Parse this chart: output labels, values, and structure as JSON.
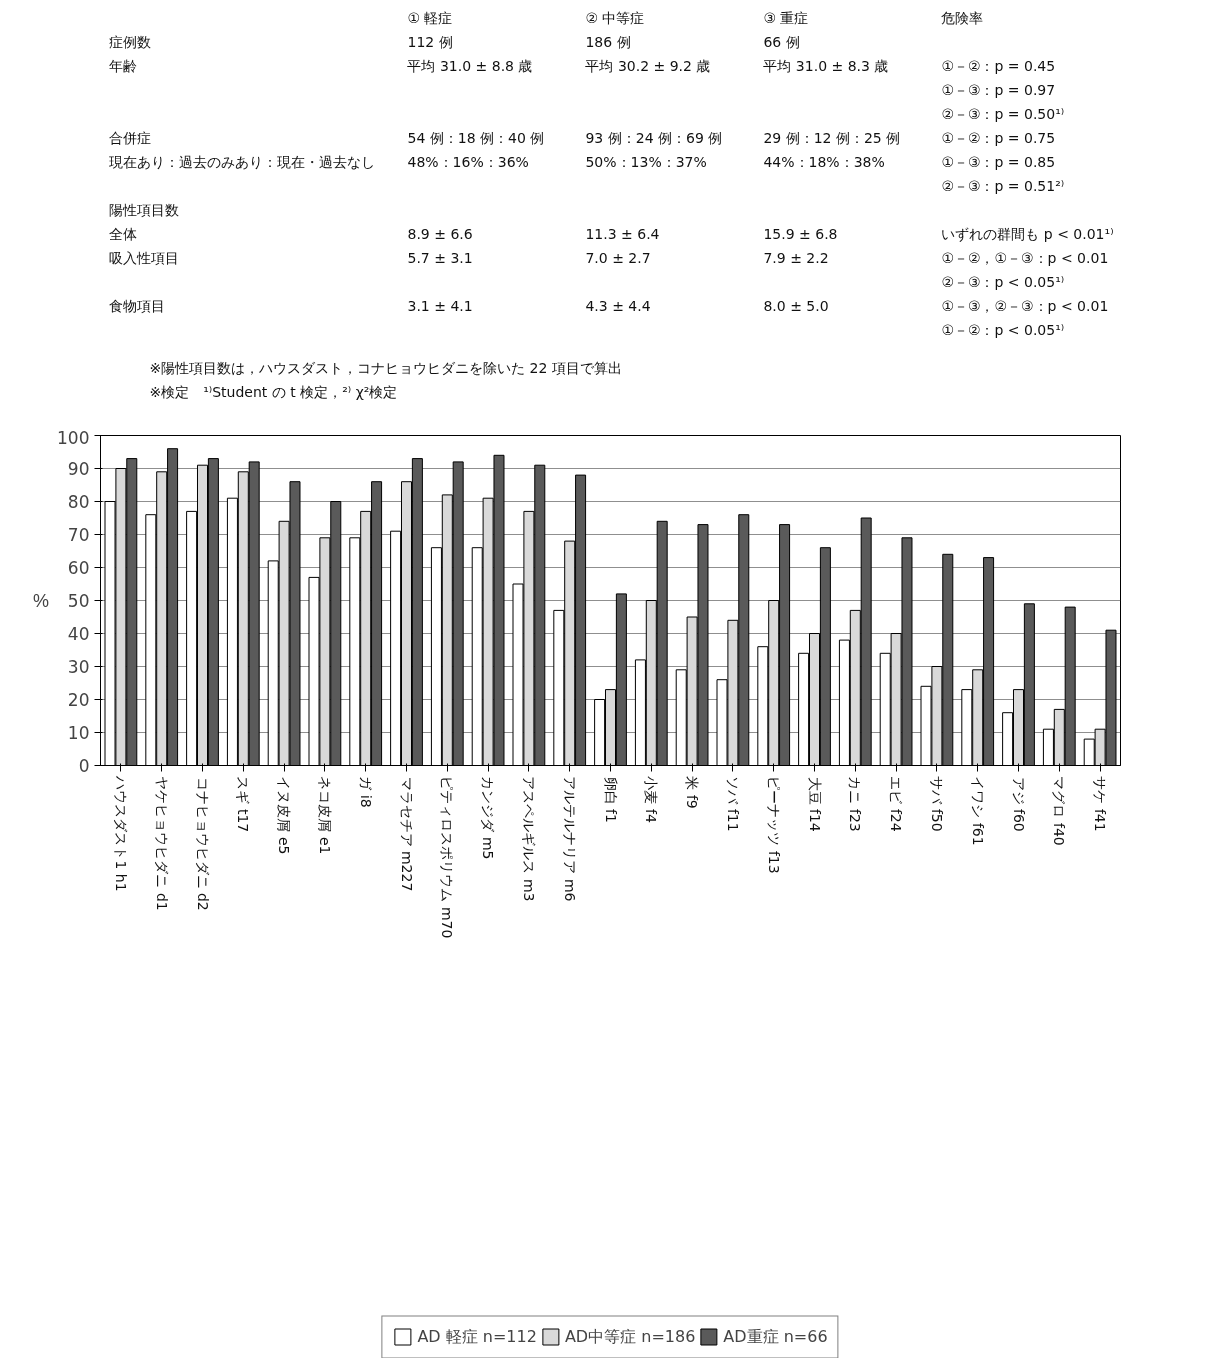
{
  "chart_data": [
    {
      "type": "other",
      "annotations": [
        "① 軽症",
        "② 中等症",
        "③ 重症",
        "危険率",
        "症例数",
        "112 例",
        "186 例",
        "66 例",
        "年齢",
        "平均 31.0 ± 8.8 歳",
        "平均 30.2 ± 9.2 歳",
        "平均 31.0 ± 8.3 歳",
        "①－②：p = 0.45",
        "①－③：p = 0.97",
        "②－③：p = 0.50¹⁾",
        "合併症",
        "54 例：18 例：40 例",
        "93 例：24 例：69 例",
        "29 例：12 例：25 例",
        "①－②：p = 0.75",
        "現在あり：過去のみあり：現在・過去なし",
        "48%：16%：36%",
        "50%：13%：37%",
        "44%：18%：38%",
        "①－③：p = 0.85",
        "②－③：p = 0.51²⁾",
        "陽性項目数",
        "全体",
        "8.9 ± 6.6",
        "11.3 ± 6.4",
        "15.9 ± 6.8",
        "いずれの群間も p < 0.01¹⁾",
        "吸入性項目",
        "5.7 ± 3.1",
        "7.0 ± 2.7",
        "7.9 ± 2.2",
        "①－②，①－③：p < 0.01",
        "②－③：p < 0.05¹⁾",
        "食物項目",
        "3.1 ± 4.1",
        "4.3 ± 4.4",
        "8.0 ± 5.0",
        "①－③，②－③：p < 0.01",
        "①－②：p < 0.05¹⁾",
        "※陽性項目数は，ハウスダスト，コナヒョウヒダニを除いた 22 項目で算出",
        "※検定　¹⁾Student の t 検定，²⁾ χ²検定"
      ]
    },
    {
      "type": "bar",
      "ylabel": "%",
      "categories": [
        "ハウスダスト1 h1",
        "ヤケヒョウヒダニ d1",
        "コナヒョウヒダニ d2",
        "スギ t17",
        "イヌ皮屑 e5",
        "ネコ皮屑 e1",
        "ガ i8",
        "マラセチア m227",
        "ピティロスポリウム m70",
        "カンジダ m5",
        "アスペルギルス m3",
        "アルテルナリア m6",
        "卵白 f1",
        "小麦 f4",
        "米 f9",
        "ソバ f11",
        "ピーナッツ f13",
        "大豆 f14",
        "カニ f23",
        "エビ f24",
        "サバ f50",
        "イワシ f61",
        "アジ f60",
        "マグロ f40",
        "サケ f41"
      ],
      "series": [
        {
          "name": "AD 軽症 n=112",
          "color": "#ffffff",
          "values": [
            80,
            76,
            77,
            81,
            62,
            57,
            69,
            71,
            66,
            66,
            55,
            47,
            20,
            32,
            29,
            26,
            36,
            34,
            38,
            34,
            24,
            23,
            16,
            11,
            8
          ]
        },
        {
          "name": "AD中等症 n=186",
          "color": "#d9d9d9",
          "values": [
            90,
            89,
            91,
            89,
            74,
            69,
            77,
            86,
            82,
            81,
            77,
            68,
            23,
            50,
            45,
            44,
            50,
            40,
            47,
            40,
            30,
            29,
            23,
            17,
            11
          ]
        },
        {
          "name": "AD重症 n=66",
          "color": "#5a5a5a",
          "values": [
            93,
            96,
            93,
            92,
            86,
            80,
            86,
            93,
            92,
            94,
            91,
            88,
            52,
            74,
            73,
            76,
            73,
            66,
            75,
            69,
            64,
            63,
            49,
            48,
            41
          ]
        }
      ],
      "ylim": [
        0,
        100
      ],
      "yticks": [
        0,
        10,
        20,
        30,
        40,
        50,
        60,
        70,
        80,
        90,
        100
      ],
      "grid": "y",
      "legend": "bottom"
    }
  ]
}
